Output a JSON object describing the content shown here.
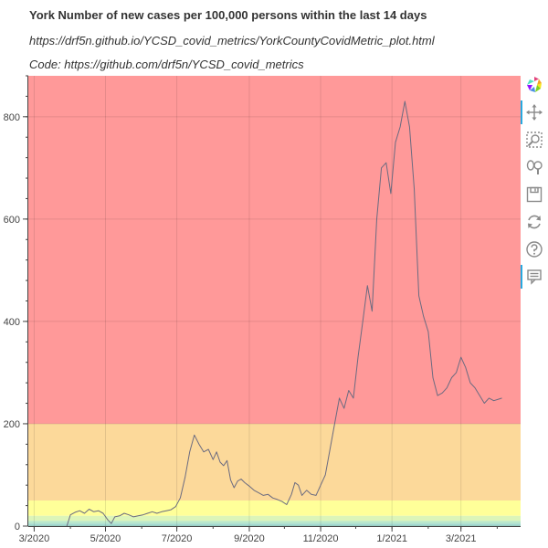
{
  "chart_data": {
    "type": "line",
    "title": "York Number of new cases per 100,000 persons within the last 14 days",
    "subtitles": [
      "https://drf5n.github.io/YCSD_covid_metrics/YorkCountyCovidMetric_plot.html",
      "Code: https://github.com/drf5n/YCSD_covid_metrics"
    ],
    "x_range": [
      "2020-02-25",
      "2021-04-21"
    ],
    "ylim": [
      0,
      880
    ],
    "x_tick_labels": [
      "3/2020",
      "5/2020",
      "7/2020",
      "9/2020",
      "11/2020",
      "1/2021",
      "3/2021"
    ],
    "x_tick_dates": [
      "2020-03-01",
      "2020-05-01",
      "2020-07-01",
      "2020-09-01",
      "2020-11-01",
      "2021-01-01",
      "2021-03-01"
    ],
    "y_ticks": [
      0,
      200,
      400,
      600,
      800
    ],
    "grid": true,
    "bands": [
      {
        "from": 200,
        "to": 880,
        "color": "#ff9999"
      },
      {
        "from": 50,
        "to": 200,
        "color": "#fcd99a"
      },
      {
        "from": 20,
        "to": 50,
        "color": "#ffff99"
      },
      {
        "from": 10,
        "to": 20,
        "color": "#dcf5b9"
      },
      {
        "from": 5,
        "to": 10,
        "color": "#b9e8cc"
      },
      {
        "from": 0,
        "to": 5,
        "color": "#a3d9cf"
      }
    ],
    "line_color": "#6b6b80",
    "series": [
      {
        "x": [
          "2020-03-29",
          "2020-04-01",
          "2020-04-05",
          "2020-04-09",
          "2020-04-13",
          "2020-04-17",
          "2020-04-21",
          "2020-04-25",
          "2020-04-29",
          "2020-05-03",
          "2020-05-06",
          "2020-05-09",
          "2020-05-13",
          "2020-05-17",
          "2020-05-21",
          "2020-05-25",
          "2020-05-29",
          "2020-06-02",
          "2020-06-06",
          "2020-06-10",
          "2020-06-14",
          "2020-06-18",
          "2020-06-22",
          "2020-06-26",
          "2020-06-30",
          "2020-07-04",
          "2020-07-08",
          "2020-07-12",
          "2020-07-16",
          "2020-07-20",
          "2020-07-24",
          "2020-07-28",
          "2020-08-01",
          "2020-08-04",
          "2020-08-07",
          "2020-08-10",
          "2020-08-13",
          "2020-08-16",
          "2020-08-19",
          "2020-08-22",
          "2020-08-25",
          "2020-08-28",
          "2020-09-01",
          "2020-09-05",
          "2020-09-09",
          "2020-09-13",
          "2020-09-17",
          "2020-09-21",
          "2020-09-25",
          "2020-09-29",
          "2020-10-03",
          "2020-10-07",
          "2020-10-10",
          "2020-10-13",
          "2020-10-16",
          "2020-10-20",
          "2020-10-24",
          "2020-10-28",
          "2020-11-01",
          "2020-11-05",
          "2020-11-09",
          "2020-11-13",
          "2020-11-17",
          "2020-11-21",
          "2020-11-25",
          "2020-11-29",
          "2020-12-03",
          "2020-12-07",
          "2020-12-11",
          "2020-12-15",
          "2020-12-19",
          "2020-12-23",
          "2020-12-27",
          "2020-12-31",
          "2021-01-04",
          "2021-01-08",
          "2021-01-12",
          "2021-01-16",
          "2021-01-20",
          "2021-01-24",
          "2021-01-28",
          "2021-02-01",
          "2021-02-05",
          "2021-02-09",
          "2021-02-13",
          "2021-02-17",
          "2021-02-21",
          "2021-02-25",
          "2021-03-01",
          "2021-03-05",
          "2021-03-09",
          "2021-03-13",
          "2021-03-17",
          "2021-03-21",
          "2021-03-25",
          "2021-03-29",
          "2021-04-02",
          "2021-04-05"
        ],
        "y": [
          0,
          22,
          27,
          30,
          25,
          33,
          28,
          30,
          25,
          12,
          5,
          18,
          20,
          25,
          22,
          18,
          20,
          22,
          25,
          28,
          25,
          28,
          30,
          32,
          38,
          55,
          95,
          145,
          178,
          160,
          145,
          150,
          130,
          145,
          125,
          118,
          128,
          90,
          75,
          88,
          92,
          85,
          78,
          70,
          65,
          60,
          62,
          55,
          52,
          48,
          42,
          62,
          85,
          80,
          60,
          70,
          62,
          60,
          80,
          100,
          150,
          200,
          250,
          230,
          265,
          250,
          330,
          400,
          470,
          420,
          600,
          700,
          710,
          650,
          750,
          780,
          830,
          780,
          660,
          450,
          410,
          380,
          290,
          255,
          260,
          270,
          290,
          300,
          330,
          310,
          280,
          270,
          255,
          240,
          250,
          245,
          248,
          250
        ]
      }
    ]
  }
}
